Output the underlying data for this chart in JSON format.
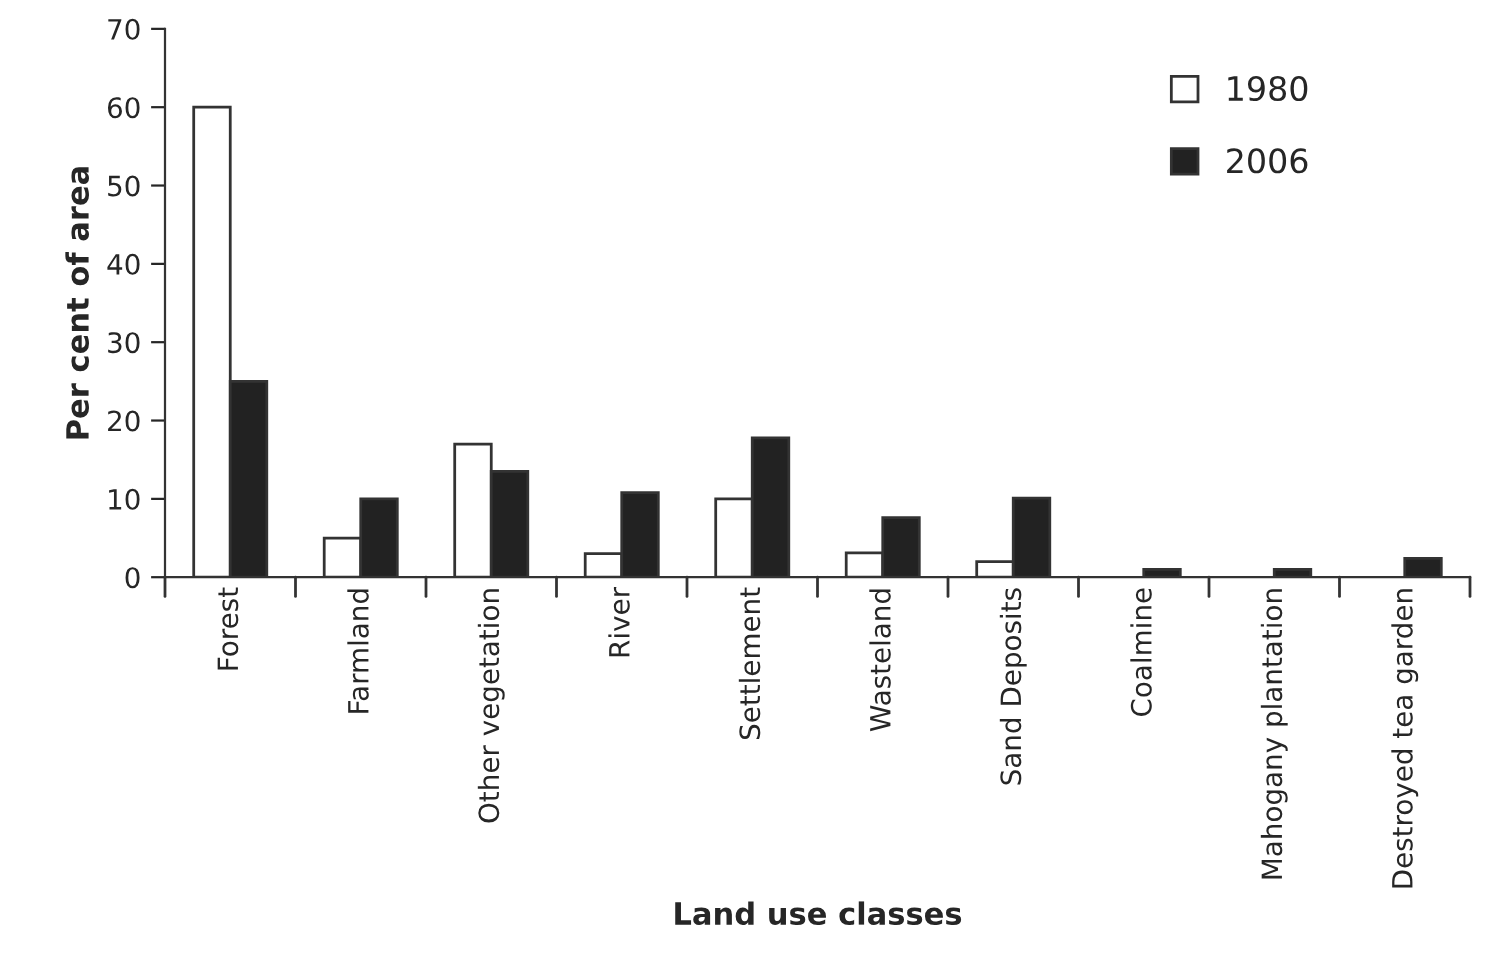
{
  "chart_data": {
    "type": "bar",
    "xlabel": "Land use classes",
    "ylabel": "Per cent of area",
    "categories": [
      "Forest",
      "Farmland",
      "Other vegetation",
      "River",
      "Settlement",
      "Wasteland",
      "Sand Deposits",
      "Coalmine",
      "Mahogany plantation",
      "Destroyed tea garden"
    ],
    "series": [
      {
        "name": "1980",
        "color": "#ffffff",
        "values": [
          60,
          5,
          17,
          3,
          10,
          3.1,
          2,
          null,
          null,
          null
        ]
      },
      {
        "name": "2006",
        "color": "#222222",
        "values": [
          25,
          10,
          13.5,
          10.8,
          17.8,
          7.6,
          10.1,
          1,
          1,
          2.4
        ]
      }
    ],
    "ylim": [
      0,
      70
    ],
    "yticks": [
      0,
      10,
      20,
      30,
      40,
      50,
      60,
      70
    ],
    "grid": false,
    "legend": "top right"
  }
}
